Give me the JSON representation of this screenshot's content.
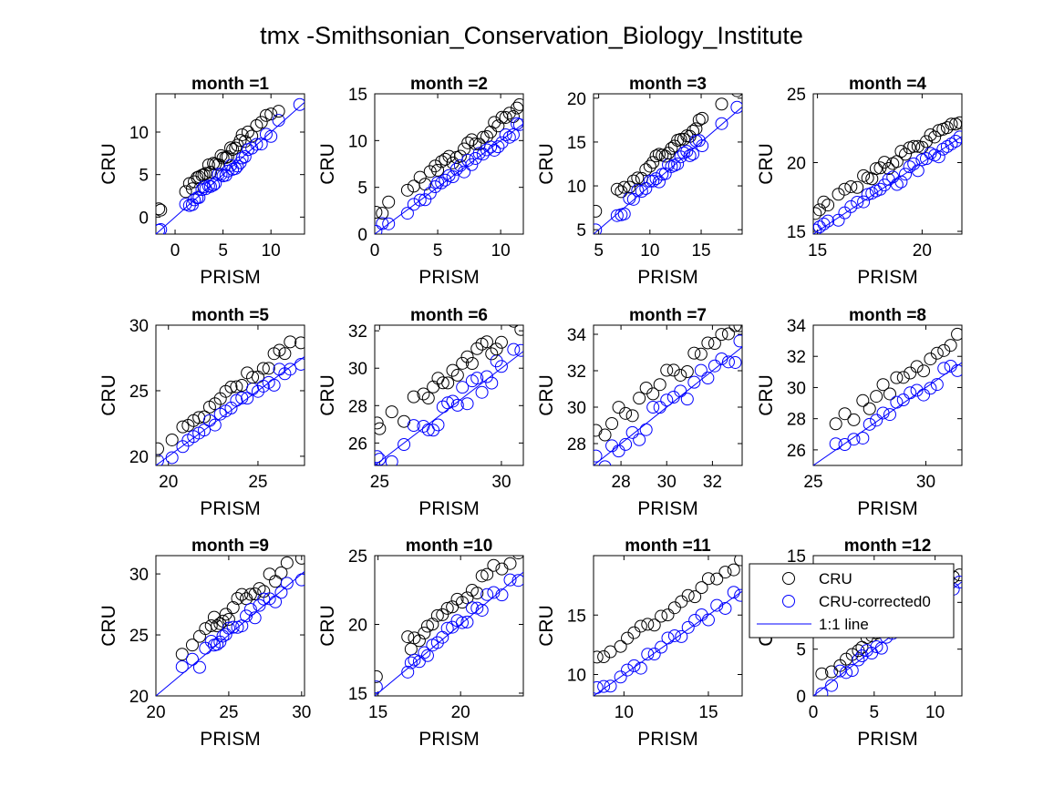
{
  "figure": {
    "title": "tmx -Smithsonian_Conservation_Biology_Institute",
    "colors": {
      "cru": "#000000",
      "corrected": "#0000ff",
      "line": "#0000ff",
      "axis": "#000000"
    },
    "legend": {
      "placement": "inside subplot month =12, top",
      "entries": [
        {
          "label": "CRU",
          "marker": "circle",
          "color": "#000000"
        },
        {
          "label": "CRU-corrected0",
          "marker": "circle",
          "color": "#0000ff"
        },
        {
          "label": "1:1 line",
          "marker": "line",
          "color": "#0000ff"
        }
      ]
    }
  },
  "chart_data": [
    {
      "type": "scatter",
      "title": "month =1",
      "xlabel": "PRISM",
      "ylabel": "CRU",
      "xlim": [
        -2,
        13.5
      ],
      "ylim": [
        -2,
        14.5
      ],
      "xticks": [
        0,
        5,
        10
      ],
      "yticks": [
        0,
        5,
        10
      ],
      "offset": 2.1,
      "spread": 0.6,
      "x": [
        -1.7,
        -1.5,
        1.1,
        1.5,
        1.8,
        2.0,
        2.3,
        2.5,
        2.8,
        3.0,
        3.2,
        3.5,
        3.7,
        4.0,
        4.2,
        4.5,
        4.8,
        5.0,
        5.3,
        5.5,
        5.8,
        6.0,
        6.3,
        6.5,
        6.8,
        7.0,
        7.3,
        7.6,
        8.0,
        8.5,
        9.0,
        9.5,
        10.0,
        10.8,
        13.0
      ]
    },
    {
      "type": "scatter",
      "title": "month =2",
      "xlabel": "PRISM",
      "ylabel": "CRU",
      "xlim": [
        0,
        11.8
      ],
      "ylim": [
        0,
        15
      ],
      "xticks": [
        0,
        5,
        10
      ],
      "yticks": [
        0,
        5,
        10,
        15
      ],
      "offset": 1.9,
      "spread": 0.6,
      "x": [
        0.1,
        0.6,
        1.1,
        2.6,
        3.1,
        3.6,
        4.0,
        4.4,
        4.8,
        5.0,
        5.3,
        5.6,
        5.9,
        6.2,
        6.5,
        6.8,
        7.1,
        7.4,
        7.7,
        8.0,
        8.3,
        8.6,
        8.9,
        9.2,
        9.5,
        9.8,
        10.1,
        10.4,
        10.7,
        11.0,
        11.3,
        11.5
      ]
    },
    {
      "type": "scatter",
      "title": "month =3",
      "xlabel": "PRISM",
      "ylabel": "CRU",
      "xlim": [
        4.5,
        19
      ],
      "ylim": [
        4.5,
        20.5
      ],
      "xticks": [
        5,
        10,
        15
      ],
      "yticks": [
        5,
        10,
        15,
        20
      ],
      "offset": 2.3,
      "spread": 0.7,
      "x": [
        4.7,
        6.8,
        7.2,
        7.5,
        8.0,
        8.4,
        8.8,
        9.2,
        9.6,
        10.0,
        10.3,
        10.6,
        10.9,
        11.2,
        11.5,
        11.8,
        12.1,
        12.4,
        12.7,
        13.0,
        13.3,
        13.6,
        13.9,
        14.2,
        14.5,
        14.8,
        15.1,
        17.0,
        18.5
      ]
    },
    {
      "type": "scatter",
      "title": "month =4",
      "xlabel": "PRISM",
      "ylabel": "CRU",
      "xlim": [
        14.8,
        21.9
      ],
      "ylim": [
        14.8,
        25
      ],
      "xticks": [
        15,
        20
      ],
      "yticks": [
        15,
        20,
        25
      ],
      "offset": 1.5,
      "spread": 0.4,
      "x": [
        14.9,
        15.1,
        15.3,
        15.5,
        16.0,
        16.3,
        16.6,
        16.9,
        17.2,
        17.4,
        17.6,
        17.8,
        18.0,
        18.2,
        18.4,
        18.6,
        18.8,
        19.0,
        19.2,
        19.4,
        19.6,
        19.8,
        20.0,
        20.2,
        20.4,
        20.6,
        20.8,
        21.0,
        21.2,
        21.4,
        21.6,
        21.8
      ]
    },
    {
      "type": "scatter",
      "title": "month =5",
      "xlabel": "PRISM",
      "ylabel": "CRU",
      "xlim": [
        19.3,
        27.6
      ],
      "ylim": [
        19.3,
        30
      ],
      "xticks": [
        20,
        25
      ],
      "yticks": [
        20,
        25,
        30
      ],
      "offset": 1.5,
      "spread": 0.5,
      "x": [
        19.4,
        20.2,
        20.8,
        21.1,
        21.4,
        21.7,
        22.0,
        22.3,
        22.6,
        22.9,
        23.2,
        23.5,
        23.8,
        24.1,
        24.4,
        24.7,
        25.0,
        25.3,
        25.6,
        25.9,
        26.2,
        26.5,
        26.8,
        27.4
      ]
    },
    {
      "type": "scatter",
      "title": "month =6",
      "xlabel": "PRISM",
      "ylabel": "CRU",
      "xlim": [
        24.8,
        30.9
      ],
      "ylim": [
        24.8,
        32.3
      ],
      "xticks": [
        25,
        30
      ],
      "yticks": [
        26,
        28,
        30,
        32
      ],
      "offset": 1.6,
      "spread": 0.6,
      "x": [
        24.9,
        25.0,
        25.5,
        26.0,
        26.4,
        26.8,
        27.0,
        27.2,
        27.4,
        27.6,
        27.8,
        28.0,
        28.2,
        28.4,
        28.6,
        28.8,
        29.0,
        29.2,
        29.4,
        29.6,
        29.8,
        30.0,
        30.5,
        30.8
      ]
    },
    {
      "type": "scatter",
      "title": "month =7",
      "xlabel": "PRISM",
      "ylabel": "CRU",
      "xlim": [
        26.8,
        33.3
      ],
      "ylim": [
        26.8,
        34.5
      ],
      "xticks": [
        28,
        30,
        32
      ],
      "yticks": [
        28,
        30,
        32,
        34
      ],
      "offset": 1.5,
      "spread": 0.6,
      "x": [
        26.9,
        27.3,
        27.6,
        27.9,
        28.2,
        28.5,
        28.8,
        29.1,
        29.4,
        29.7,
        30.0,
        30.3,
        30.6,
        30.9,
        31.2,
        31.5,
        31.8,
        32.1,
        32.4,
        32.7,
        33.0,
        33.2
      ]
    },
    {
      "type": "scatter",
      "title": "month =8",
      "xlabel": "PRISM",
      "ylabel": "CRU",
      "xlim": [
        25,
        31.6
      ],
      "ylim": [
        25,
        34
      ],
      "xticks": [
        25,
        30
      ],
      "yticks": [
        26,
        28,
        30,
        32,
        34
      ],
      "offset": 1.6,
      "spread": 0.5,
      "x": [
        26.0,
        26.4,
        26.8,
        27.2,
        27.5,
        27.8,
        28.1,
        28.4,
        28.7,
        29.0,
        29.3,
        29.6,
        29.9,
        30.2,
        30.5,
        30.8,
        31.1,
        31.4
      ]
    },
    {
      "type": "scatter",
      "title": "month =9",
      "xlabel": "PRISM",
      "ylabel": "CRU",
      "xlim": [
        20,
        30.2
      ],
      "ylim": [
        20,
        31.5
      ],
      "xticks": [
        20,
        25,
        30
      ],
      "yticks": [
        20,
        25,
        30
      ],
      "offset": 1.8,
      "spread": 0.7,
      "x": [
        21.8,
        22.5,
        23.0,
        23.4,
        23.8,
        24.0,
        24.2,
        24.4,
        24.6,
        24.8,
        25.0,
        25.3,
        25.6,
        25.9,
        26.2,
        26.5,
        26.8,
        27.1,
        27.4,
        27.8,
        28.2,
        28.6,
        29.0,
        30.0
      ]
    },
    {
      "type": "scatter",
      "title": "month =10",
      "xlabel": "PRISM",
      "ylabel": "CRU",
      "xlim": [
        14.8,
        23.8
      ],
      "ylim": [
        14.8,
        25
      ],
      "xticks": [
        15,
        20
      ],
      "yticks": [
        15,
        20,
        25
      ],
      "offset": 1.7,
      "spread": 0.6,
      "x": [
        14.9,
        16.8,
        17.0,
        17.2,
        17.5,
        17.8,
        18.0,
        18.3,
        18.6,
        18.9,
        19.2,
        19.5,
        19.8,
        20.1,
        20.4,
        20.7,
        21.0,
        21.3,
        21.6,
        22.0,
        22.5,
        23.0,
        23.5
      ]
    },
    {
      "type": "scatter",
      "title": "month =11",
      "xlabel": "PRISM",
      "ylabel": "CRU",
      "xlim": [
        8.2,
        17
      ],
      "ylim": [
        8.2,
        20
      ],
      "xticks": [
        10,
        15
      ],
      "yticks": [
        10,
        15
      ],
      "offset": 2.6,
      "spread": 0.5,
      "x": [
        8.4,
        8.8,
        9.2,
        9.8,
        10.2,
        10.6,
        11.0,
        11.4,
        11.8,
        12.2,
        12.6,
        13.0,
        13.4,
        13.8,
        14.2,
        14.6,
        15.0,
        15.5,
        16.0,
        16.5,
        16.9
      ]
    },
    {
      "type": "scatter",
      "title": "month =12",
      "xlabel": "PRISM",
      "ylabel": "CRU",
      "xlim": [
        0,
        12.2
      ],
      "ylim": [
        0,
        15
      ],
      "xticks": [
        0,
        5,
        10
      ],
      "yticks": [
        0,
        5,
        10,
        15
      ],
      "offset": 1.4,
      "spread": 0.5,
      "x": [
        0.7,
        1.5,
        2.2,
        2.7,
        3.2,
        3.7,
        4.0,
        4.4,
        4.8,
        5.2,
        5.6,
        6.0,
        6.5,
        7.0,
        7.5,
        8.0,
        8.5,
        9.0,
        9.5,
        10.0,
        10.5,
        11.0,
        11.5,
        12.0
      ]
    }
  ]
}
